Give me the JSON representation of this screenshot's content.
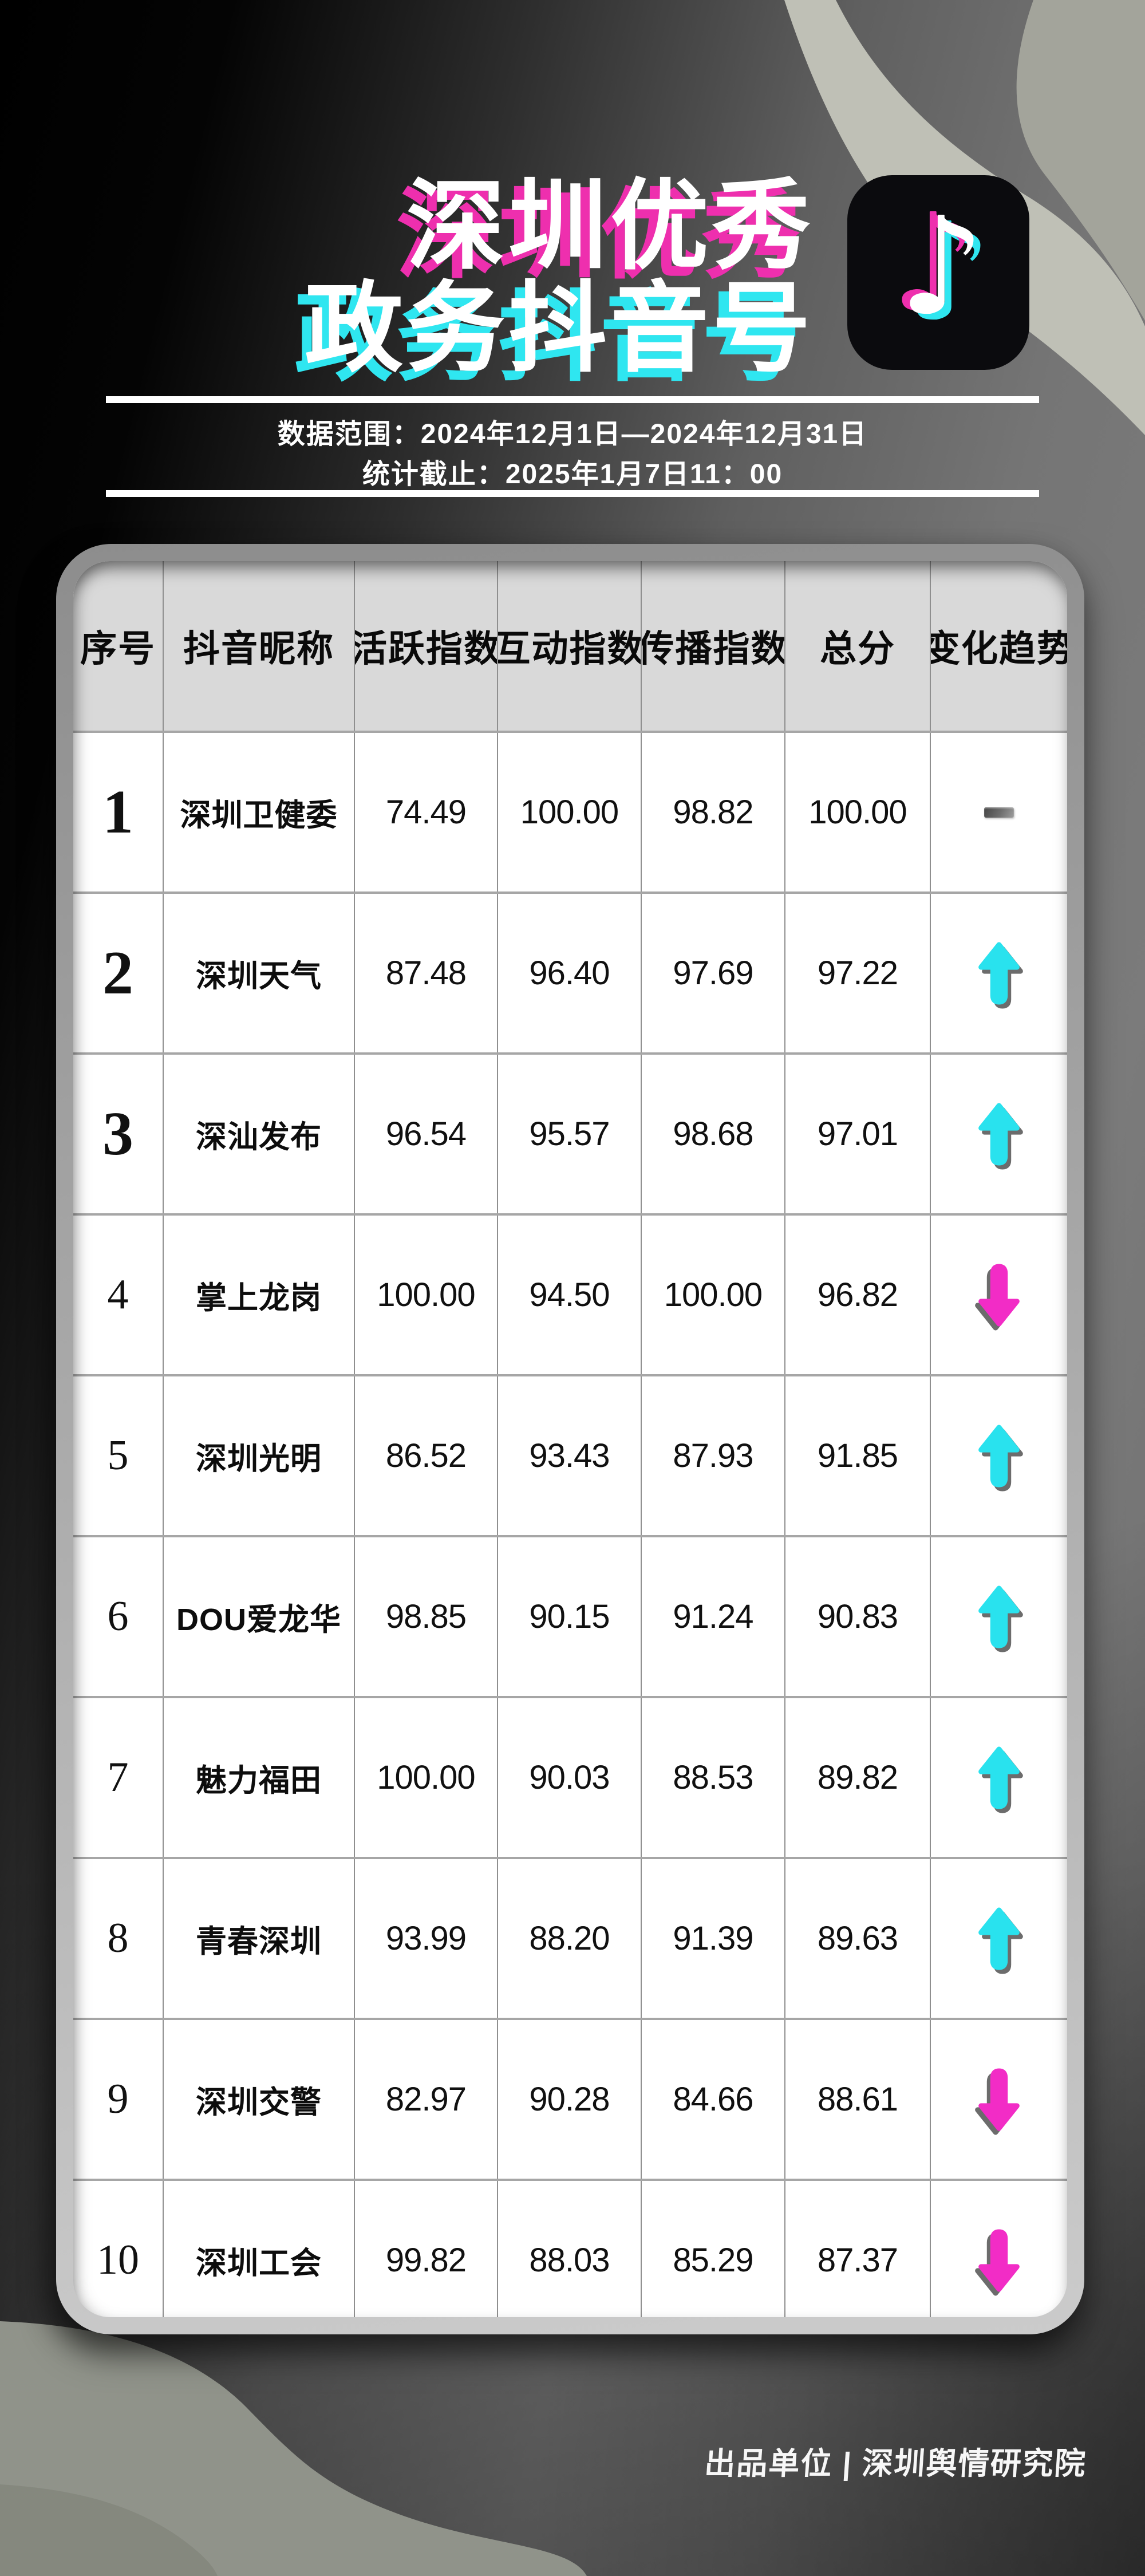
{
  "title": {
    "line1": "深圳优秀",
    "line2": "政务抖音号"
  },
  "colors": {
    "accent_magenta": "#ee2fae",
    "accent_cyan": "#2fe6f0",
    "arrow_up": "#29e2ee",
    "arrow_down": "#f22cc6",
    "trend_flat_gray": "#6f6f6f",
    "tiktok_bg": "#0b0b0e",
    "header_row_bg": "#d9d9d9",
    "ribbon_light": "#bfc0b6",
    "ribbon_corner": "#a3a49b",
    "blob_sage": "#90938a"
  },
  "meta": {
    "date_range": "数据范围：2024年12月1日—2024年12月31日",
    "deadline": "统计截止：2025年1月7日11：00"
  },
  "chart_data": {
    "type": "table",
    "title": "深圳优秀政务抖音号",
    "columns": [
      "序号",
      "抖音昵称",
      "活跃指数",
      "互动指数",
      "传播指数",
      "总分",
      "变化趋势"
    ],
    "rows": [
      {
        "rank": "1",
        "name": "深圳卫健委",
        "values": [
          "74.49",
          "100.00",
          "98.82",
          "100.00"
        ],
        "trend": "flat"
      },
      {
        "rank": "2",
        "name": "深圳天气",
        "values": [
          "87.48",
          "96.40",
          "97.69",
          "97.22"
        ],
        "trend": "up"
      },
      {
        "rank": "3",
        "name": "深汕发布",
        "values": [
          "96.54",
          "95.57",
          "98.68",
          "97.01"
        ],
        "trend": "up"
      },
      {
        "rank": "4",
        "name": "掌上龙岗",
        "values": [
          "100.00",
          "94.50",
          "100.00",
          "96.82"
        ],
        "trend": "down"
      },
      {
        "rank": "5",
        "name": "深圳光明",
        "values": [
          "86.52",
          "93.43",
          "87.93",
          "91.85"
        ],
        "trend": "up"
      },
      {
        "rank": "6",
        "name": "DOU爱龙华",
        "values": [
          "98.85",
          "90.15",
          "91.24",
          "90.83"
        ],
        "trend": "up"
      },
      {
        "rank": "7",
        "name": "魅力福田",
        "values": [
          "100.00",
          "90.03",
          "88.53",
          "89.82"
        ],
        "trend": "up"
      },
      {
        "rank": "8",
        "name": "青春深圳",
        "values": [
          "93.99",
          "88.20",
          "91.39",
          "89.63"
        ],
        "trend": "up"
      },
      {
        "rank": "9",
        "name": "深圳交警",
        "values": [
          "82.97",
          "90.28",
          "84.66",
          "88.61"
        ],
        "trend": "down"
      },
      {
        "rank": "10",
        "name": "深圳工会",
        "values": [
          "99.82",
          "88.03",
          "85.29",
          "87.37"
        ],
        "trend": "down"
      }
    ]
  },
  "footer": {
    "credit": "出品单位 | 深圳舆情研究院"
  },
  "icons": {
    "tiktok": "tiktok-note-icon",
    "up": "up-arrow-icon",
    "down": "down-arrow-icon",
    "flat": "flat-dash-icon"
  }
}
